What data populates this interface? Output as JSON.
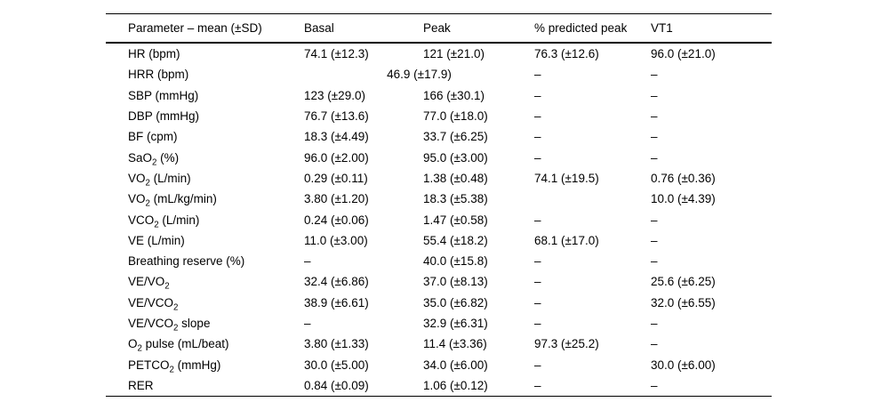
{
  "table": {
    "columns": [
      "Parameter – mean (±SD)",
      "Basal",
      "Peak",
      "% predicted peak",
      "VT1"
    ],
    "rows": [
      {
        "param": "HR (bpm)",
        "basal": "74.1 (±12.3)",
        "peak": "121 (±21.0)",
        "pred": "76.3 (±12.6)",
        "vt1": "96.0 (±21.0)"
      },
      {
        "param": "HRR (bpm)",
        "span_basal_peak": "46.9 (±17.9)",
        "pred": "–",
        "vt1": "–"
      },
      {
        "param": "SBP (mmHg)",
        "basal": "123 (±29.0)",
        "peak": "166 (±30.1)",
        "pred": "–",
        "vt1": "–"
      },
      {
        "param": "DBP (mmHg)",
        "basal": "76.7 (±13.6)",
        "peak": "77.0 (±18.0)",
        "pred": "–",
        "vt1": "–"
      },
      {
        "param": "BF (cpm)",
        "basal": "18.3 (±4.49)",
        "peak": "33.7 (±6.25)",
        "pred": "–",
        "vt1": "–"
      },
      {
        "param": "SaO~2~ (%)",
        "basal": "96.0 (±2.00)",
        "peak": "95.0 (±3.00)",
        "pred": "–",
        "vt1": "–"
      },
      {
        "param": "VO~2~ (L/min)",
        "basal": "0.29 (±0.11)",
        "peak": "1.38 (±0.48)",
        "pred": "74.1 (±19.5)",
        "vt1": "0.76 (±0.36)"
      },
      {
        "param": "VO~2~ (mL/kg/min)",
        "basal": "3.80 (±1.20)",
        "peak": "18.3 (±5.38)",
        "pred": "",
        "vt1": "10.0 (±4.39)"
      },
      {
        "param": "VCO~2~ (L/min)",
        "basal": "0.24 (±0.06)",
        "peak": "1.47 (±0.58)",
        "pred": "–",
        "vt1": "–"
      },
      {
        "param": "VE (L/min)",
        "basal": "11.0 (±3.00)",
        "peak": "55.4 (±18.2)",
        "pred": "68.1 (±17.0)",
        "vt1": "–"
      },
      {
        "param": "Breathing reserve (%)",
        "basal": "–",
        "peak": "40.0 (±15.8)",
        "pred": "–",
        "vt1": "–"
      },
      {
        "param": "VE/VO~2~",
        "basal": "32.4 (±6.86)",
        "peak": "37.0 (±8.13)",
        "pred": "–",
        "vt1": "25.6 (±6.25)"
      },
      {
        "param": "VE/VCO~2~",
        "basal": "38.9 (±6.61)",
        "peak": "35.0 (±6.82)",
        "pred": "–",
        "vt1": "32.0 (±6.55)"
      },
      {
        "param": "VE/VCO~2~ slope",
        "basal": "–",
        "peak": "32.9 (±6.31)",
        "pred": "–",
        "vt1": "–"
      },
      {
        "param": "O~2~ pulse (mL/beat)",
        "basal": "3.80 (±1.33)",
        "peak": "11.4 (±3.36)",
        "pred": "97.3 (±25.2)",
        "vt1": "–"
      },
      {
        "param": "PETCO~2~ (mmHg)",
        "basal": "30.0 (±5.00)",
        "peak": "34.0 (±6.00)",
        "pred": "–",
        "vt1": "30.0 (±6.00)"
      },
      {
        "param": "RER",
        "basal": "0.84 (±0.09)",
        "peak": "1.06 (±0.12)",
        "pred": "–",
        "vt1": "–"
      }
    ]
  },
  "colors": {
    "text": "#000000",
    "background": "#ffffff",
    "rule": "#000000"
  }
}
